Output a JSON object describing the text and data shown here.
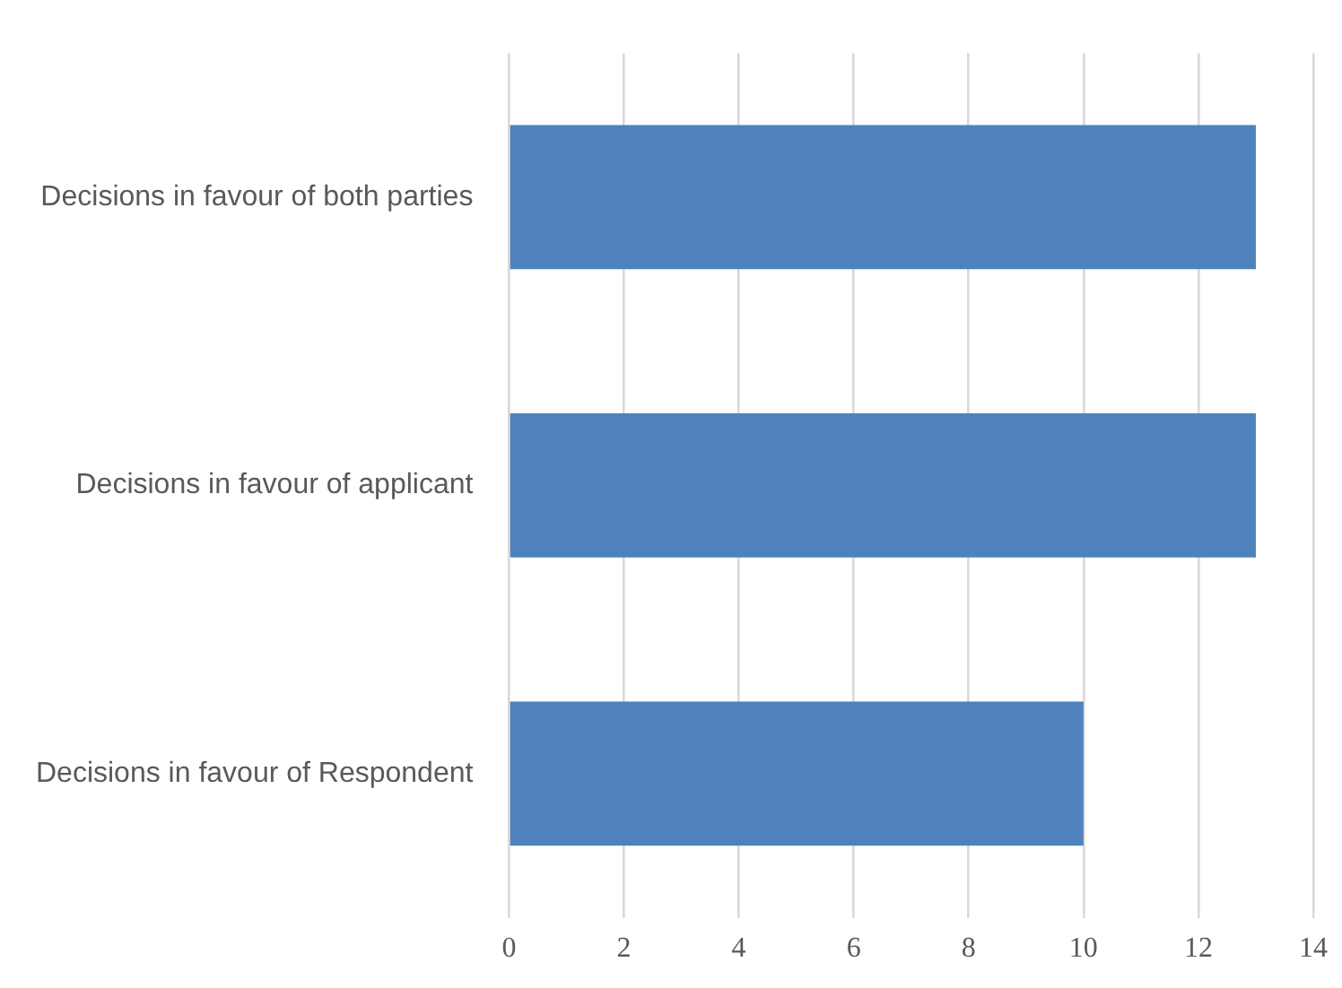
{
  "chart_data": {
    "type": "bar",
    "orientation": "horizontal",
    "categories": [
      "Decisions in favour of both parties",
      "Decisions in favour of applicant",
      "Decisions in favour of Respondent"
    ],
    "values": [
      13,
      13,
      10
    ],
    "color": "#4f81bd",
    "xlim": [
      0,
      14
    ],
    "xticks": [
      0,
      2,
      4,
      6,
      8,
      10,
      12,
      14
    ],
    "grid": "x",
    "legend": false
  }
}
